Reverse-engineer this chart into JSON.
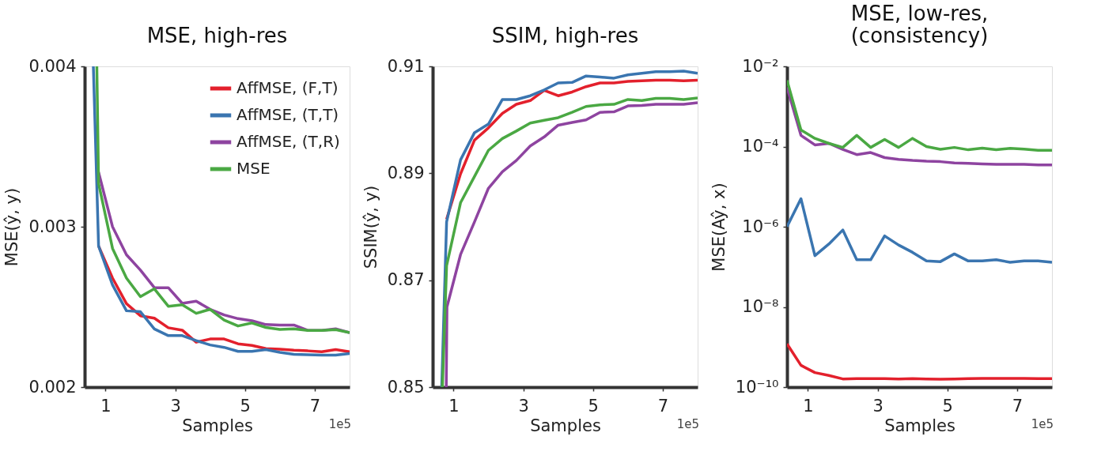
{
  "chart_data": [
    {
      "type": "line",
      "title": "MSE, high-res",
      "xlabel": "Samples",
      "ylabel": "MSE(ŷ, y)",
      "annotations": [
        "1e5"
      ],
      "xlim": [
        0.4,
        8.0
      ],
      "xticks": [
        1,
        3,
        5,
        7
      ],
      "ylim": [
        0.002,
        0.004
      ],
      "yticks": [
        0.002,
        0.003,
        0.004
      ],
      "grid": false,
      "legend": "top right",
      "series": [
        {
          "name": "AffMSE, (F,T)",
          "color": "#e3202c",
          "x": [
            0.8,
            1.2,
            1.6,
            2.0,
            2.4,
            2.8,
            3.2,
            3.6,
            4.0,
            4.4,
            4.8,
            5.2,
            5.6,
            6.0,
            6.4,
            6.8,
            7.2,
            7.6,
            8.0
          ],
          "values": [
            0.00288,
            0.00268,
            0.00252,
            0.002445,
            0.00243,
            0.00237,
            0.002355,
            0.00228,
            0.0023,
            0.0023,
            0.00227,
            0.00226,
            0.00224,
            0.002237,
            0.00223,
            0.002226,
            0.00222,
            0.002234,
            0.00222
          ]
        },
        {
          "name": "AffMSE, (T,T)",
          "color": "#3a75b0",
          "x": [
            0.65,
            0.8,
            1.2,
            1.6,
            2.0,
            2.4,
            2.8,
            3.2,
            3.6,
            4.0,
            4.4,
            4.8,
            5.2,
            5.6,
            6.0,
            6.4,
            6.8,
            7.2,
            7.6,
            8.0
          ],
          "values": [
            0.004,
            0.00288,
            0.002637,
            0.002476,
            0.00247,
            0.002363,
            0.002321,
            0.002321,
            0.00229,
            0.002263,
            0.002248,
            0.002223,
            0.002223,
            0.002234,
            0.002217,
            0.002204,
            0.002202,
            0.002199,
            0.002199,
            0.00221
          ]
        },
        {
          "name": "AffMSE, (T,R)",
          "color": "#8e44a0",
          "x": [
            0.8,
            1.2,
            1.6,
            2.0,
            2.4,
            2.8,
            3.2,
            3.6,
            4.0,
            4.4,
            4.8,
            5.2,
            5.6,
            6.0,
            6.4,
            6.8,
            7.2,
            7.6,
            8.0
          ],
          "values": [
            0.00334,
            0.003,
            0.002825,
            0.00273,
            0.00262,
            0.00262,
            0.002522,
            0.002536,
            0.002485,
            0.00245,
            0.002427,
            0.002414,
            0.00239,
            0.002387,
            0.002387,
            0.002354,
            0.002354,
            0.002363,
            0.00234
          ]
        },
        {
          "name": "MSE",
          "color": "#4aa843",
          "x": [
            0.75,
            0.8,
            1.2,
            1.6,
            2.0,
            2.4,
            2.8,
            3.2,
            3.6,
            4.0,
            4.4,
            4.8,
            5.2,
            5.6,
            6.0,
            6.4,
            6.8,
            7.2,
            7.6,
            8.0
          ],
          "values": [
            0.004,
            0.00327,
            0.002865,
            0.00268,
            0.002564,
            0.002613,
            0.002504,
            0.002513,
            0.00246,
            0.002485,
            0.002418,
            0.002381,
            0.0024,
            0.002372,
            0.00236,
            0.002363,
            0.002354,
            0.002354,
            0.002358,
            0.00234
          ]
        }
      ]
    },
    {
      "type": "line",
      "title": "SSIM, high-res",
      "xlabel": "Samples",
      "ylabel": "SSIM(ŷ, y)",
      "annotations": [
        "1e5"
      ],
      "xlim": [
        0.4,
        8.0
      ],
      "xticks": [
        1,
        3,
        5,
        7
      ],
      "ylim": [
        0.85,
        0.91
      ],
      "yticks": [
        0.85,
        0.87,
        0.89,
        0.91
      ],
      "grid": false,
      "legend": false,
      "series": [
        {
          "color": "#e3202c",
          "x": [
            0.8,
            1.2,
            1.6,
            2.0,
            2.4,
            2.8,
            3.2,
            3.6,
            4.0,
            4.4,
            4.8,
            5.2,
            5.6,
            6.0,
            6.4,
            6.8,
            7.2,
            7.6,
            8.0
          ],
          "values": [
            0.8814,
            0.8899,
            0.8962,
            0.8985,
            0.9012,
            0.9029,
            0.9036,
            0.9055,
            0.9045,
            0.9052,
            0.9062,
            0.9069,
            0.9069,
            0.9072,
            0.9073,
            0.9074,
            0.9074,
            0.9073,
            0.9074
          ]
        },
        {
          "color": "#3a75b0",
          "x": [
            0.66,
            0.8,
            1.2,
            1.6,
            2.0,
            2.4,
            2.8,
            3.2,
            3.6,
            4.0,
            4.4,
            4.8,
            5.2,
            5.6,
            6.0,
            6.4,
            6.8,
            7.2,
            7.6,
            8.0
          ],
          "values": [
            0.85,
            0.8809,
            0.8925,
            0.8976,
            0.8992,
            0.9038,
            0.9038,
            0.9045,
            0.9056,
            0.9069,
            0.907,
            0.9082,
            0.908,
            0.9078,
            0.9084,
            0.9087,
            0.909,
            0.909,
            0.9091,
            0.9087
          ]
        },
        {
          "color": "#8e44a0",
          "x": [
            0.79,
            0.81,
            1.2,
            1.6,
            2.0,
            2.4,
            2.8,
            3.2,
            3.6,
            4.0,
            4.4,
            4.8,
            5.2,
            5.6,
            6.0,
            6.4,
            6.8,
            7.2,
            7.6,
            8.0
          ],
          "values": [
            0.85,
            0.865,
            0.8748,
            0.8809,
            0.8872,
            0.8903,
            0.8924,
            0.8951,
            0.8968,
            0.899,
            0.8995,
            0.9,
            0.9014,
            0.9015,
            0.9026,
            0.9027,
            0.9029,
            0.9029,
            0.9029,
            0.9032
          ]
        },
        {
          "color": "#4aa843",
          "x": [
            0.68,
            0.8,
            1.2,
            1.6,
            2.0,
            2.4,
            2.8,
            3.2,
            3.6,
            4.0,
            4.4,
            4.8,
            5.2,
            5.6,
            6.0,
            6.4,
            6.8,
            7.2,
            7.6,
            8.0
          ],
          "values": [
            0.85,
            0.8727,
            0.8845,
            0.8894,
            0.8943,
            0.8965,
            0.8979,
            0.8994,
            0.8999,
            0.9004,
            0.9014,
            0.9025,
            0.9028,
            0.9029,
            0.9038,
            0.9036,
            0.904,
            0.904,
            0.9038,
            0.9041
          ]
        }
      ]
    },
    {
      "type": "line",
      "title": "MSE, low-res,\n(consistency)",
      "xlabel": "Samples",
      "ylabel": "MSE(Aŷ, x)",
      "annotations": [
        "1e5"
      ],
      "log": "y",
      "xlim": [
        0.4,
        8.0
      ],
      "xticks": [
        1,
        3,
        5,
        7
      ],
      "ylim": [
        1e-10,
        0.01
      ],
      "yticks": [
        {
          "value": 1e-10,
          "label": "10⁻¹⁰"
        },
        {
          "value": 1e-08,
          "label": "10⁻⁸"
        },
        {
          "value": 1e-06,
          "label": "10⁻⁶"
        },
        {
          "value": 0.0001,
          "label": "10⁻⁴"
        },
        {
          "value": 0.01,
          "label": "10⁻²"
        }
      ],
      "grid": false,
      "legend": false,
      "series": [
        {
          "color": "#e3202c",
          "x": [
            0.4,
            0.8,
            1.2,
            1.6,
            2.0,
            2.4,
            2.8,
            3.2,
            3.6,
            4.0,
            4.4,
            4.8,
            5.2,
            5.6,
            6.0,
            6.4,
            6.8,
            7.2,
            7.6,
            8.0
          ],
          "values": [
            1.2e-09,
            3.5e-10,
            2.3e-10,
            1.95e-10,
            1.6e-10,
            1.62e-10,
            1.63e-10,
            1.63e-10,
            1.6e-10,
            1.63e-10,
            1.6e-10,
            1.58e-10,
            1.6e-10,
            1.63e-10,
            1.65e-10,
            1.65e-10,
            1.65e-10,
            1.65e-10,
            1.63e-10,
            1.63e-10
          ]
        },
        {
          "color": "#3a75b0",
          "x": [
            0.4,
            0.8,
            1.2,
            1.6,
            2.0,
            2.4,
            2.8,
            3.2,
            3.6,
            4.0,
            4.4,
            4.8,
            5.2,
            5.6,
            6.0,
            6.4,
            6.8,
            7.2,
            7.6,
            8.0
          ],
          "values": [
            1e-06,
            5e-06,
            1.9e-07,
            3.7e-07,
            8.3e-07,
            1.5e-07,
            1.5e-07,
            5.9e-07,
            3.5e-07,
            2.3e-07,
            1.4e-07,
            1.35e-07,
            2.1e-07,
            1.4e-07,
            1.4e-07,
            1.5e-07,
            1.3e-07,
            1.4e-07,
            1.4e-07,
            1.3e-07
          ]
        },
        {
          "color": "#8e44a0",
          "x": [
            0.4,
            0.8,
            1.2,
            1.6,
            2.0,
            2.4,
            2.8,
            3.2,
            3.6,
            4.0,
            4.4,
            4.8,
            5.2,
            5.6,
            6.0,
            6.4,
            6.8,
            7.2,
            7.6,
            8.0
          ],
          "values": [
            0.003,
            0.00019,
            0.00011,
            0.00012,
            8.5e-05,
            6.3e-05,
            7.1e-05,
            5.3e-05,
            4.8e-05,
            4.5e-05,
            4.3e-05,
            4.2e-05,
            3.9e-05,
            3.8e-05,
            3.7e-05,
            3.6e-05,
            3.6e-05,
            3.6e-05,
            3.5e-05,
            3.5e-05
          ]
        },
        {
          "color": "#4aa843",
          "x": [
            0.4,
            0.8,
            1.2,
            1.6,
            2.0,
            2.4,
            2.8,
            3.2,
            3.6,
            4.0,
            4.4,
            4.8,
            5.2,
            5.6,
            6.0,
            6.4,
            6.8,
            7.2,
            7.6,
            8.0
          ],
          "values": [
            0.0045,
            0.00026,
            0.00016,
            0.00012,
            9.5e-05,
            0.00019,
            9.5e-05,
            0.00015,
            9.5e-05,
            0.00016,
            0.0001,
            8.5e-05,
            9.5e-05,
            8.3e-05,
            9.1e-05,
            8.3e-05,
            9e-05,
            8.6e-05,
            8.1e-05,
            8.1e-05
          ]
        }
      ]
    }
  ]
}
